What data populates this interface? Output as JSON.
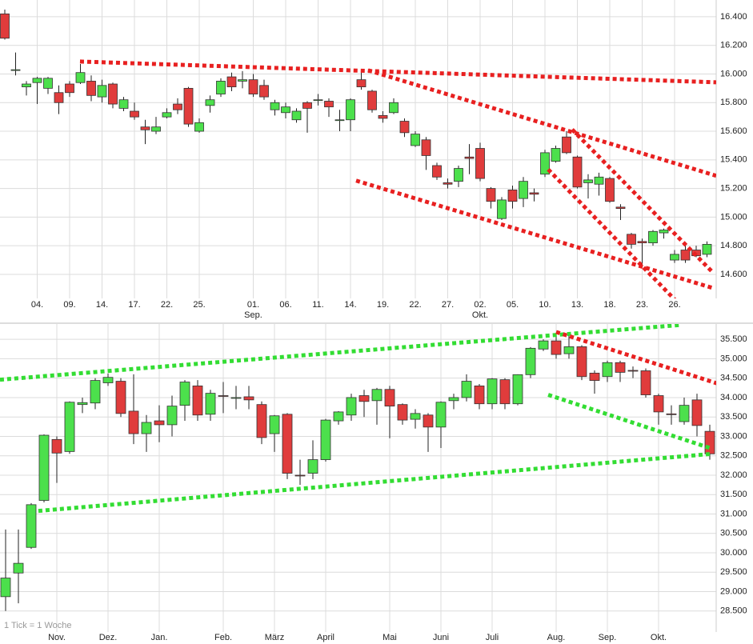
{
  "chart_data": [
    {
      "type": "candlestick",
      "categories": [
        null,
        null,
        null,
        "04.",
        null,
        null,
        "09.",
        null,
        null,
        "14.",
        null,
        null,
        "17.",
        null,
        null,
        "22.",
        null,
        null,
        "25.",
        null,
        null,
        null,
        null,
        "01.",
        null,
        null,
        "06.",
        null,
        null,
        "11.",
        null,
        null,
        "14.",
        null,
        null,
        "19.",
        null,
        null,
        "22.",
        null,
        null,
        "27.",
        null,
        null,
        "02.",
        null,
        null,
        "05.",
        null,
        null,
        "10.",
        null,
        null,
        "13.",
        null,
        null,
        "18.",
        null,
        null,
        "23.",
        null,
        null,
        "26.",
        null,
        null,
        null
      ],
      "months": [
        null,
        null,
        null,
        null,
        null,
        null,
        null,
        null,
        null,
        null,
        null,
        null,
        null,
        null,
        null,
        null,
        null,
        null,
        null,
        null,
        null,
        null,
        null,
        "Sep.",
        null,
        null,
        null,
        null,
        null,
        null,
        null,
        null,
        null,
        null,
        null,
        null,
        null,
        null,
        null,
        null,
        null,
        null,
        null,
        null,
        "Okt.",
        null,
        null,
        null,
        null,
        null,
        null,
        null,
        null,
        null,
        null,
        null,
        null,
        null,
        null,
        null,
        null,
        null,
        null,
        null,
        null,
        null
      ],
      "open": [
        16.42,
        16.03,
        15.91,
        15.94,
        15.9,
        15.87,
        15.93,
        15.94,
        15.95,
        15.84,
        15.93,
        15.76,
        15.74,
        15.63,
        15.6,
        15.7,
        15.79,
        15.9,
        15.6,
        15.78,
        15.86,
        15.98,
        15.95,
        15.96,
        15.92,
        15.75,
        15.73,
        15.68,
        15.8,
        15.82,
        15.81,
        15.68,
        15.68,
        15.96,
        15.88,
        15.71,
        15.73,
        15.67,
        15.5,
        15.54,
        15.36,
        15.24,
        15.25,
        15.42,
        15.48,
        15.2,
        14.99,
        15.19,
        15.13,
        15.17,
        15.3,
        15.39,
        15.56,
        15.42,
        15.24,
        15.23,
        15.27,
        15.07,
        14.88,
        14.83,
        14.82,
        14.89,
        14.7,
        14.77,
        14.77,
        14.74
      ],
      "high": [
        16.45,
        16.15,
        15.95,
        15.98,
        15.98,
        15.92,
        15.95,
        16.07,
        15.99,
        15.96,
        15.94,
        15.84,
        15.8,
        15.68,
        15.7,
        15.76,
        15.83,
        15.91,
        15.69,
        15.85,
        15.97,
        16.01,
        16.02,
        16.0,
        15.96,
        15.82,
        15.8,
        15.76,
        15.81,
        15.86,
        15.83,
        15.75,
        15.83,
        16.02,
        15.89,
        15.74,
        15.83,
        15.69,
        15.6,
        15.56,
        15.38,
        15.27,
        15.36,
        15.51,
        15.52,
        15.21,
        15.14,
        15.22,
        15.28,
        15.2,
        15.47,
        15.5,
        15.6,
        15.43,
        15.3,
        15.31,
        15.28,
        15.09,
        14.89,
        14.85,
        14.91,
        14.92,
        14.77,
        14.8,
        14.8,
        14.83
      ],
      "low": [
        16.24,
        15.99,
        15.85,
        15.79,
        15.86,
        15.72,
        15.84,
        15.93,
        15.81,
        15.8,
        15.76,
        15.74,
        15.68,
        15.51,
        15.58,
        15.69,
        15.72,
        15.63,
        15.59,
        15.73,
        15.84,
        15.88,
        15.9,
        15.84,
        15.82,
        15.71,
        15.69,
        15.66,
        15.59,
        15.78,
        15.7,
        15.6,
        15.6,
        15.89,
        15.73,
        15.66,
        15.72,
        15.56,
        15.49,
        15.33,
        15.26,
        15.2,
        15.21,
        15.3,
        15.25,
        15.06,
        14.98,
        15.06,
        15.07,
        15.11,
        15.28,
        15.38,
        15.44,
        15.2,
        15.13,
        15.15,
        15.1,
        14.98,
        14.78,
        14.66,
        14.8,
        14.85,
        14.68,
        14.68,
        14.72,
        14.72
      ],
      "close": [
        16.25,
        16.03,
        15.93,
        15.97,
        15.97,
        15.8,
        15.87,
        16.01,
        15.85,
        15.92,
        15.79,
        15.82,
        15.7,
        15.61,
        15.63,
        15.73,
        15.75,
        15.65,
        15.66,
        15.82,
        15.95,
        15.91,
        15.96,
        15.86,
        15.84,
        15.8,
        15.77,
        15.74,
        15.76,
        15.82,
        15.77,
        15.68,
        15.82,
        15.91,
        15.75,
        15.69,
        15.8,
        15.59,
        15.58,
        15.43,
        15.28,
        15.23,
        15.34,
        15.41,
        15.27,
        15.11,
        15.12,
        15.11,
        15.25,
        15.16,
        15.45,
        15.48,
        15.45,
        15.21,
        15.26,
        15.28,
        15.11,
        15.06,
        14.81,
        14.82,
        14.9,
        14.91,
        14.74,
        14.7,
        14.73,
        14.81
      ],
      "up_color": "#4ce04c",
      "down_color": "#e03c3c",
      "ylim": [
        14.432,
        16.517
      ],
      "yticks": [
        {
          "value": 14.6,
          "label": "14.600"
        },
        {
          "value": 14.8,
          "label": "14.800"
        },
        {
          "value": 15.0,
          "label": "15.000"
        },
        {
          "value": 15.2,
          "label": "15.200"
        },
        {
          "value": 15.4,
          "label": "15.400"
        },
        {
          "value": 15.6,
          "label": "15.600"
        },
        {
          "value": 15.8,
          "label": "15.800"
        },
        {
          "value": 16.0,
          "label": "16.000"
        },
        {
          "value": 16.2,
          "label": "16.200"
        },
        {
          "value": 16.4,
          "label": "16.400"
        }
      ],
      "grid": true,
      "trendlines": [
        {
          "color": "#e82020",
          "x": [
            6.96,
            65.85
          ],
          "y": [
            16.087,
            15.942
          ]
        },
        {
          "color": "#e82020",
          "x": [
            33.63,
            65.85
          ],
          "y": [
            16.026,
            15.289
          ]
        },
        {
          "color": "#e82020",
          "x": [
            52.52,
            65.48
          ],
          "y": [
            15.612,
            14.618
          ]
        },
        {
          "color": "#e82020",
          "x": [
            50.3,
            63.26
          ],
          "y": [
            15.333,
            14.327
          ]
        },
        {
          "color": "#e82020",
          "x": [
            32.52,
            65.48
          ],
          "y": [
            15.255,
            14.506
          ]
        }
      ]
    },
    {
      "type": "candlestick",
      "categories": [
        null,
        null,
        null,
        null,
        "Nov.",
        null,
        null,
        null,
        "Dez.",
        null,
        null,
        null,
        "Jan.",
        null,
        null,
        null,
        null,
        "Feb.",
        null,
        null,
        null,
        "März",
        null,
        null,
        null,
        "April",
        null,
        null,
        null,
        null,
        "Mai",
        null,
        null,
        null,
        "Juni",
        null,
        null,
        null,
        "Juli",
        null,
        null,
        null,
        null,
        "Aug.",
        null,
        null,
        null,
        "Sep.",
        null,
        null,
        null,
        "Okt.",
        null,
        null,
        null,
        null
      ],
      "open": [
        28.87,
        29.48,
        30.14,
        31.35,
        32.92,
        32.61,
        33.82,
        33.86,
        34.38,
        34.42,
        33.65,
        33.07,
        33.4,
        33.3,
        33.8,
        34.3,
        33.57,
        34.05,
        34.0,
        34.02,
        33.82,
        33.07,
        33.57,
        32.0,
        32.05,
        32.4,
        33.4,
        33.55,
        34.05,
        33.92,
        34.21,
        33.82,
        33.44,
        33.55,
        33.24,
        33.92,
        34.0,
        34.3,
        33.84,
        34.46,
        33.84,
        34.59,
        35.25,
        35.46,
        35.13,
        35.31,
        34.63,
        34.54,
        34.9,
        34.7,
        34.69,
        34.05,
        33.58,
        33.38,
        33.94,
        33.13
      ],
      "high": [
        30.6,
        30.6,
        31.28,
        33.05,
        33.0,
        33.9,
        34.0,
        34.5,
        34.62,
        34.5,
        34.6,
        33.55,
        33.8,
        34.05,
        34.45,
        34.45,
        34.2,
        34.4,
        34.3,
        34.3,
        33.9,
        33.55,
        33.6,
        32.4,
        32.9,
        33.45,
        33.65,
        34.1,
        34.2,
        34.25,
        34.3,
        33.85,
        33.7,
        33.6,
        33.9,
        34.1,
        34.6,
        34.35,
        34.5,
        34.5,
        34.6,
        35.3,
        35.5,
        35.6,
        35.6,
        35.35,
        34.7,
        34.95,
        34.95,
        34.8,
        34.75,
        34.1,
        33.8,
        34.0,
        34.1,
        33.3
      ],
      "low": [
        28.5,
        28.7,
        30.1,
        31.3,
        31.8,
        32.55,
        33.6,
        33.7,
        34.3,
        33.5,
        32.8,
        32.6,
        32.85,
        33.0,
        33.4,
        33.4,
        33.4,
        33.6,
        33.7,
        33.7,
        32.8,
        32.6,
        31.9,
        31.75,
        31.9,
        32.35,
        33.3,
        33.4,
        33.5,
        33.3,
        32.95,
        33.3,
        33.2,
        32.6,
        32.7,
        33.7,
        33.9,
        33.7,
        33.7,
        33.7,
        33.8,
        34.5,
        35.2,
        35.0,
        35.0,
        34.45,
        34.1,
        34.4,
        34.4,
        34.5,
        34.0,
        33.3,
        33.3,
        33.3,
        33.0,
        32.4
      ],
      "close": [
        29.35,
        29.73,
        31.24,
        33.03,
        32.57,
        33.88,
        33.87,
        34.44,
        34.52,
        33.59,
        33.07,
        33.36,
        33.3,
        33.78,
        34.4,
        33.55,
        34.11,
        34.04,
        34.0,
        33.94,
        32.97,
        33.53,
        32.05,
        31.99,
        32.4,
        33.42,
        33.63,
        34.0,
        33.9,
        34.21,
        33.78,
        33.42,
        33.59,
        33.24,
        33.88,
        34.0,
        34.42,
        33.84,
        34.48,
        33.84,
        34.59,
        35.27,
        35.46,
        35.11,
        35.31,
        34.54,
        34.44,
        34.9,
        34.65,
        34.69,
        34.07,
        33.63,
        33.57,
        33.8,
        33.28,
        32.55
      ],
      "up_color": "#4ce04c",
      "down_color": "#e03c3c",
      "ylim": [
        27.96,
        35.895
      ],
      "yticks": [
        {
          "value": 28.5,
          "label": "28.500"
        },
        {
          "value": 29.0,
          "label": "29.000"
        },
        {
          "value": 29.5,
          "label": "29.500"
        },
        {
          "value": 30.0,
          "label": "30.000"
        },
        {
          "value": 30.5,
          "label": "30.500"
        },
        {
          "value": 31.0,
          "label": "31.000"
        },
        {
          "value": 31.5,
          "label": "31.500"
        },
        {
          "value": 32.0,
          "label": "32.000"
        },
        {
          "value": 32.5,
          "label": "32.500"
        },
        {
          "value": 33.0,
          "label": "33.000"
        },
        {
          "value": 33.5,
          "label": "33.500"
        },
        {
          "value": 34.0,
          "label": "34.000"
        },
        {
          "value": 34.5,
          "label": "34.500"
        },
        {
          "value": 35.0,
          "label": "35.000"
        },
        {
          "value": 35.5,
          "label": "35.500"
        }
      ],
      "grid": true,
      "note": "1 Tick = 1 Woche",
      "trendlines": [
        {
          "color": "#33dd33",
          "x": [
            -0.44,
            52.69
          ],
          "y": [
            34.46,
            35.87
          ]
        },
        {
          "color": "#33dd33",
          "x": [
            2.56,
            55.19
          ],
          "y": [
            31.08,
            32.55
          ]
        },
        {
          "color": "#33dd33",
          "x": [
            42.38,
            55.19
          ],
          "y": [
            34.07,
            32.68
          ]
        },
        {
          "color": "#e82020",
          "x": [
            43.0,
            55.81
          ],
          "y": [
            35.69,
            34.34
          ]
        }
      ]
    }
  ]
}
